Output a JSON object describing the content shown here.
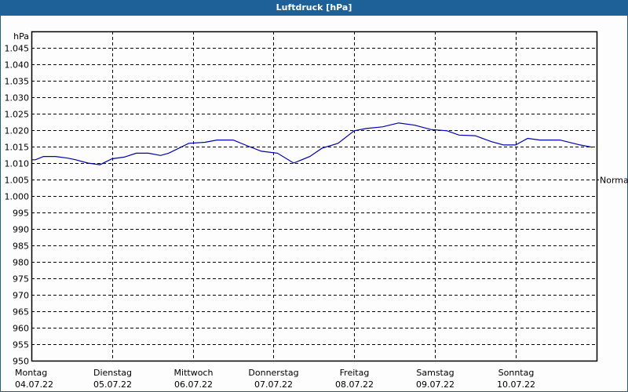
{
  "window": {
    "title": "Luftdruck [hPa]"
  },
  "chart_data": {
    "type": "line",
    "title": "Luftdruck [hPa]",
    "ylabel": "hPa",
    "xlabel": "",
    "ylim": [
      950,
      1050
    ],
    "grid": true,
    "y_ticks": [
      "1.045",
      "1.040",
      "1.035",
      "1.030",
      "1.025",
      "1.020",
      "1.015",
      "1.010",
      "1.005",
      "1.000",
      "995",
      "990",
      "985",
      "980",
      "975",
      "970",
      "965",
      "960",
      "955",
      "950"
    ],
    "y_tick_values": [
      1045,
      1040,
      1035,
      1030,
      1025,
      1020,
      1015,
      1010,
      1005,
      1000,
      995,
      990,
      985,
      980,
      975,
      970,
      965,
      960,
      955,
      950
    ],
    "x_ticks": [
      {
        "day": "Montag",
        "date": "04.07.22"
      },
      {
        "day": "Dienstag",
        "date": "05.07.22"
      },
      {
        "day": "Mittwoch",
        "date": "06.07.22"
      },
      {
        "day": "Donnerstag",
        "date": "07.07.22"
      },
      {
        "day": "Freitag",
        "date": "08.07.22"
      },
      {
        "day": "Samstag",
        "date": "09.07.22"
      },
      {
        "day": "Sonntag",
        "date": "10.07.22"
      }
    ],
    "right_annotation": {
      "label": "Normal",
      "value": 1005
    },
    "series": [
      {
        "name": "Luftdruck",
        "color": "#0000b4",
        "x_days": [
          0,
          0.05,
          0.15,
          0.3,
          0.45,
          0.55,
          0.7,
          0.85,
          1.0,
          1.15,
          1.3,
          1.45,
          1.6,
          1.7,
          1.95,
          2.15,
          2.3,
          2.5,
          2.7,
          2.85,
          3.05,
          3.25,
          3.45,
          3.6,
          3.8,
          4.0,
          4.15,
          4.35,
          4.55,
          4.75,
          4.95,
          5.15,
          5.3,
          5.5,
          5.7,
          5.85,
          6.0,
          6.15,
          6.3,
          6.55,
          6.8,
          6.95
        ],
        "values": [
          1011,
          1011,
          1012,
          1012,
          1011.5,
          1011,
          1010,
          1009.5,
          1011.3,
          1011.8,
          1013,
          1013,
          1012.3,
          1013,
          1016,
          1016.3,
          1017,
          1017,
          1015,
          1013.6,
          1013,
          1010,
          1012,
          1014.5,
          1016,
          1019.8,
          1020.5,
          1021,
          1022.2,
          1021.5,
          1020.2,
          1019.8,
          1018.5,
          1018.3,
          1016.5,
          1015.5,
          1015.5,
          1017.5,
          1017,
          1017,
          1015.5,
          1014.8
        ]
      }
    ]
  }
}
